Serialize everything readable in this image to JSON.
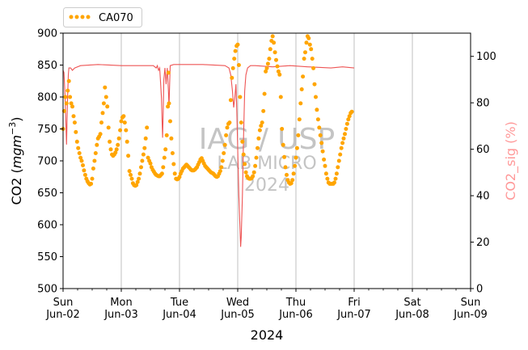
{
  "chart_data": {
    "type": "scatter",
    "title": "",
    "legend": {
      "placement": "upper-left-outside",
      "entries": [
        "CA070"
      ]
    },
    "watermark": [
      "IAG / USP",
      "LAB MICRO",
      "2024"
    ],
    "xlabel": "2024",
    "x_range": [
      "2024-06-02",
      "2024-06-09"
    ],
    "x_ticks": [
      {
        "day": "Sun",
        "date": "Jun-02"
      },
      {
        "day": "Mon",
        "date": "Jun-03"
      },
      {
        "day": "Tue",
        "date": "Jun-04"
      },
      {
        "day": "Wed",
        "date": "Jun-05"
      },
      {
        "day": "Thu",
        "date": "Jun-06"
      },
      {
        "day": "Fri",
        "date": "Jun-07"
      },
      {
        "day": "Sat",
        "date": "Jun-08"
      },
      {
        "day": "Sun",
        "date": "Jun-09"
      }
    ],
    "grid": "vertical lines at day ticks",
    "y_left": {
      "label": "CO2 (mg m⁻³)",
      "ylim": [
        500,
        900
      ],
      "ticks": [
        500,
        550,
        600,
        650,
        700,
        750,
        800,
        850,
        900
      ]
    },
    "y_right": {
      "label": "CO2_sig (%)",
      "ylim": [
        0,
        110
      ],
      "ticks": [
        0,
        20,
        40,
        60,
        80,
        100
      ],
      "color": "#ff9999"
    },
    "series": [
      {
        "name": "CA070",
        "type": "scatter",
        "axis": "left",
        "color": "#ffa500",
        "points": [
          [
            0.0,
            750
          ],
          [
            0.02,
            778
          ],
          [
            0.04,
            800
          ],
          [
            0.06,
            790
          ],
          [
            0.08,
            810
          ],
          [
            0.1,
            825
          ],
          [
            0.12,
            800
          ],
          [
            0.14,
            790
          ],
          [
            0.16,
            785
          ],
          [
            0.18,
            770
          ],
          [
            0.2,
            760
          ],
          [
            0.22,
            745
          ],
          [
            0.24,
            730
          ],
          [
            0.26,
            720
          ],
          [
            0.28,
            712
          ],
          [
            0.3,
            705
          ],
          [
            0.32,
            700
          ],
          [
            0.34,
            693
          ],
          [
            0.36,
            685
          ],
          [
            0.38,
            678
          ],
          [
            0.4,
            672
          ],
          [
            0.42,
            668
          ],
          [
            0.44,
            665
          ],
          [
            0.46,
            663
          ],
          [
            0.48,
            664
          ],
          [
            0.5,
            672
          ],
          [
            0.52,
            688
          ],
          [
            0.54,
            700
          ],
          [
            0.56,
            712
          ],
          [
            0.58,
            725
          ],
          [
            0.6,
            735
          ],
          [
            0.62,
            738
          ],
          [
            0.64,
            742
          ],
          [
            0.66,
            760
          ],
          [
            0.68,
            775
          ],
          [
            0.7,
            790
          ],
          [
            0.72,
            815
          ],
          [
            0.74,
            800
          ],
          [
            0.76,
            785
          ],
          [
            0.78,
            752
          ],
          [
            0.8,
            730
          ],
          [
            0.82,
            718
          ],
          [
            0.84,
            710
          ],
          [
            0.86,
            708
          ],
          [
            0.88,
            710
          ],
          [
            0.9,
            713
          ],
          [
            0.92,
            718
          ],
          [
            0.94,
            725
          ],
          [
            0.96,
            735
          ],
          [
            0.98,
            748
          ],
          [
            1.0,
            762
          ],
          [
            1.02,
            768
          ],
          [
            1.04,
            770
          ],
          [
            1.06,
            760
          ],
          [
            1.08,
            748
          ],
          [
            1.1,
            730
          ],
          [
            1.12,
            708
          ],
          [
            1.14,
            684
          ],
          [
            1.16,
            678
          ],
          [
            1.18,
            672
          ],
          [
            1.2,
            665
          ],
          [
            1.22,
            662
          ],
          [
            1.24,
            661
          ],
          [
            1.26,
            662
          ],
          [
            1.28,
            667
          ],
          [
            1.3,
            672
          ],
          [
            1.32,
            680
          ],
          [
            1.34,
            690
          ],
          [
            1.36,
            700
          ],
          [
            1.38,
            710
          ],
          [
            1.4,
            720
          ],
          [
            1.42,
            735
          ],
          [
            1.44,
            752
          ],
          [
            1.46,
            705
          ],
          [
            1.48,
            700
          ],
          [
            1.5,
            696
          ],
          [
            1.52,
            690
          ],
          [
            1.54,
            686
          ],
          [
            1.56,
            683
          ],
          [
            1.58,
            680
          ],
          [
            1.6,
            678
          ],
          [
            1.62,
            677
          ],
          [
            1.64,
            676
          ],
          [
            1.66,
            676
          ],
          [
            1.68,
            678
          ],
          [
            1.7,
            680
          ],
          [
            1.72,
            690
          ],
          [
            1.74,
            705
          ],
          [
            1.76,
            718
          ],
          [
            1.78,
            740
          ],
          [
            1.8,
            785
          ],
          [
            1.81,
            838
          ],
          [
            1.82,
            790
          ],
          [
            1.84,
            762
          ],
          [
            1.86,
            735
          ],
          [
            1.88,
            712
          ],
          [
            1.9,
            695
          ],
          [
            1.92,
            680
          ],
          [
            1.94,
            672
          ],
          [
            1.96,
            671
          ],
          [
            1.98,
            672
          ],
          [
            2.0,
            675
          ],
          [
            2.02,
            680
          ],
          [
            2.04,
            684
          ],
          [
            2.06,
            688
          ],
          [
            2.08,
            690
          ],
          [
            2.1,
            692
          ],
          [
            2.12,
            694
          ],
          [
            2.14,
            692
          ],
          [
            2.16,
            690
          ],
          [
            2.18,
            688
          ],
          [
            2.2,
            686
          ],
          [
            2.22,
            685
          ],
          [
            2.24,
            685
          ],
          [
            2.26,
            686
          ],
          [
            2.28,
            688
          ],
          [
            2.3,
            690
          ],
          [
            2.32,
            694
          ],
          [
            2.34,
            698
          ],
          [
            2.36,
            702
          ],
          [
            2.38,
            704
          ],
          [
            2.4,
            700
          ],
          [
            2.42,
            696
          ],
          [
            2.44,
            692
          ],
          [
            2.46,
            690
          ],
          [
            2.48,
            688
          ],
          [
            2.5,
            686
          ],
          [
            2.52,
            684
          ],
          [
            2.54,
            682
          ],
          [
            2.56,
            681
          ],
          [
            2.58,
            680
          ],
          [
            2.6,
            678
          ],
          [
            2.62,
            676
          ],
          [
            2.64,
            675
          ],
          [
            2.66,
            676
          ],
          [
            2.68,
            680
          ],
          [
            2.7,
            684
          ],
          [
            2.72,
            690
          ],
          [
            2.74,
            700
          ],
          [
            2.76,
            712
          ],
          [
            2.78,
            725
          ],
          [
            2.8,
            740
          ],
          [
            2.82,
            752
          ],
          [
            2.84,
            758
          ],
          [
            2.86,
            760
          ],
          [
            2.88,
            795
          ],
          [
            2.9,
            830
          ],
          [
            2.92,
            845
          ],
          [
            2.94,
            860
          ],
          [
            2.96,
            872
          ],
          [
            2.98,
            880
          ],
          [
            3.0,
            882
          ],
          [
            3.02,
            850
          ],
          [
            3.04,
            800
          ],
          [
            3.06,
            760
          ],
          [
            3.08,
            730
          ],
          [
            3.1,
            710
          ],
          [
            3.12,
            695
          ],
          [
            3.14,
            682
          ],
          [
            3.16,
            676
          ],
          [
            3.18,
            673
          ],
          [
            3.2,
            672
          ],
          [
            3.22,
            672
          ],
          [
            3.24,
            673
          ],
          [
            3.26,
            676
          ],
          [
            3.28,
            682
          ],
          [
            3.3,
            692
          ],
          [
            3.32,
            705
          ],
          [
            3.34,
            720
          ],
          [
            3.36,
            735
          ],
          [
            3.38,
            748
          ],
          [
            3.4,
            755
          ],
          [
            3.42,
            760
          ],
          [
            3.44,
            778
          ],
          [
            3.46,
            805
          ],
          [
            3.48,
            840
          ],
          [
            3.5,
            845
          ],
          [
            3.52,
            852
          ],
          [
            3.54,
            860
          ],
          [
            3.56,
            875
          ],
          [
            3.58,
            888
          ],
          [
            3.6,
            895
          ],
          [
            3.62,
            885
          ],
          [
            3.64,
            870
          ],
          [
            3.66,
            858
          ],
          [
            3.68,
            848
          ],
          [
            3.7,
            840
          ],
          [
            3.72,
            835
          ],
          [
            3.74,
            800
          ],
          [
            3.76,
            750
          ],
          [
            3.78,
            725
          ],
          [
            3.8,
            706
          ],
          [
            3.82,
            690
          ],
          [
            3.84,
            678
          ],
          [
            3.86,
            670
          ],
          [
            3.88,
            666
          ],
          [
            3.9,
            664
          ],
          [
            3.92,
            665
          ],
          [
            3.94,
            670
          ],
          [
            3.96,
            680
          ],
          [
            3.98,
            692
          ],
          [
            4.0,
            705
          ],
          [
            4.02,
            720
          ],
          [
            4.04,
            740
          ],
          [
            4.06,
            765
          ],
          [
            4.08,
            790
          ],
          [
            4.1,
            812
          ],
          [
            4.12,
            832
          ],
          [
            4.14,
            860
          ],
          [
            4.16,
            870
          ],
          [
            4.18,
            885
          ],
          [
            4.2,
            895
          ],
          [
            4.22,
            892
          ],
          [
            4.24,
            882
          ],
          [
            4.26,
            875
          ],
          [
            4.28,
            860
          ],
          [
            4.3,
            845
          ],
          [
            4.32,
            820
          ],
          [
            4.34,
            800
          ],
          [
            4.36,
            780
          ],
          [
            4.38,
            765
          ],
          [
            4.4,
            752
          ],
          [
            4.42,
            740
          ],
          [
            4.44,
            728
          ],
          [
            4.46,
            715
          ],
          [
            4.48,
            702
          ],
          [
            4.5,
            692
          ],
          [
            4.52,
            680
          ],
          [
            4.54,
            672
          ],
          [
            4.56,
            666
          ],
          [
            4.58,
            664
          ],
          [
            4.6,
            664
          ],
          [
            4.62,
            664
          ],
          [
            4.64,
            664
          ],
          [
            4.66,
            666
          ],
          [
            4.68,
            672
          ],
          [
            4.7,
            680
          ],
          [
            4.72,
            690
          ],
          [
            4.74,
            700
          ],
          [
            4.76,
            710
          ],
          [
            4.78,
            720
          ],
          [
            4.8,
            728
          ],
          [
            4.82,
            735
          ],
          [
            4.84,
            742
          ],
          [
            4.86,
            750
          ],
          [
            4.88,
            758
          ],
          [
            4.9,
            765
          ],
          [
            4.92,
            770
          ],
          [
            4.94,
            775
          ],
          [
            4.96,
            777
          ]
        ]
      },
      {
        "name": "",
        "type": "line",
        "axis": "right",
        "color": "#ee5555",
        "points": [
          [
            0.0,
            94
          ],
          [
            0.015,
            93
          ],
          [
            0.03,
            85
          ],
          [
            0.045,
            75
          ],
          [
            0.06,
            62
          ],
          [
            0.075,
            80
          ],
          [
            0.09,
            92
          ],
          [
            0.1,
            95
          ],
          [
            0.13,
            95
          ],
          [
            0.16,
            94
          ],
          [
            0.2,
            95
          ],
          [
            0.3,
            96
          ],
          [
            0.6,
            96.5
          ],
          [
            1.0,
            96
          ],
          [
            1.3,
            96
          ],
          [
            1.55,
            96
          ],
          [
            1.6,
            95
          ],
          [
            1.62,
            96
          ],
          [
            1.64,
            94
          ],
          [
            1.66,
            95
          ],
          [
            1.69,
            82
          ],
          [
            1.7,
            73
          ],
          [
            1.71,
            65
          ],
          [
            1.72,
            75
          ],
          [
            1.73,
            90
          ],
          [
            1.75,
            95
          ],
          [
            1.77,
            88
          ],
          [
            1.78,
            92
          ],
          [
            1.79,
            95
          ],
          [
            1.8,
            90
          ],
          [
            1.81,
            85
          ],
          [
            1.82,
            78
          ],
          [
            1.83,
            88
          ],
          [
            1.84,
            96
          ],
          [
            1.9,
            96.5
          ],
          [
            2.4,
            96.5
          ],
          [
            2.78,
            96
          ],
          [
            2.85,
            95
          ],
          [
            2.88,
            92
          ],
          [
            2.91,
            85
          ],
          [
            2.93,
            78
          ],
          [
            2.95,
            82
          ],
          [
            2.97,
            88
          ],
          [
            2.98,
            80
          ],
          [
            3.0,
            60
          ],
          [
            3.02,
            40
          ],
          [
            3.04,
            25
          ],
          [
            3.05,
            18
          ],
          [
            3.06,
            22
          ],
          [
            3.08,
            40
          ],
          [
            3.1,
            65
          ],
          [
            3.12,
            85
          ],
          [
            3.14,
            92
          ],
          [
            3.17,
            95
          ],
          [
            3.22,
            96
          ],
          [
            3.3,
            96
          ],
          [
            3.6,
            95.5
          ],
          [
            3.9,
            96
          ],
          [
            4.2,
            95.5
          ],
          [
            4.6,
            95
          ],
          [
            4.8,
            95.5
          ],
          [
            5.0,
            95
          ]
        ]
      }
    ]
  }
}
